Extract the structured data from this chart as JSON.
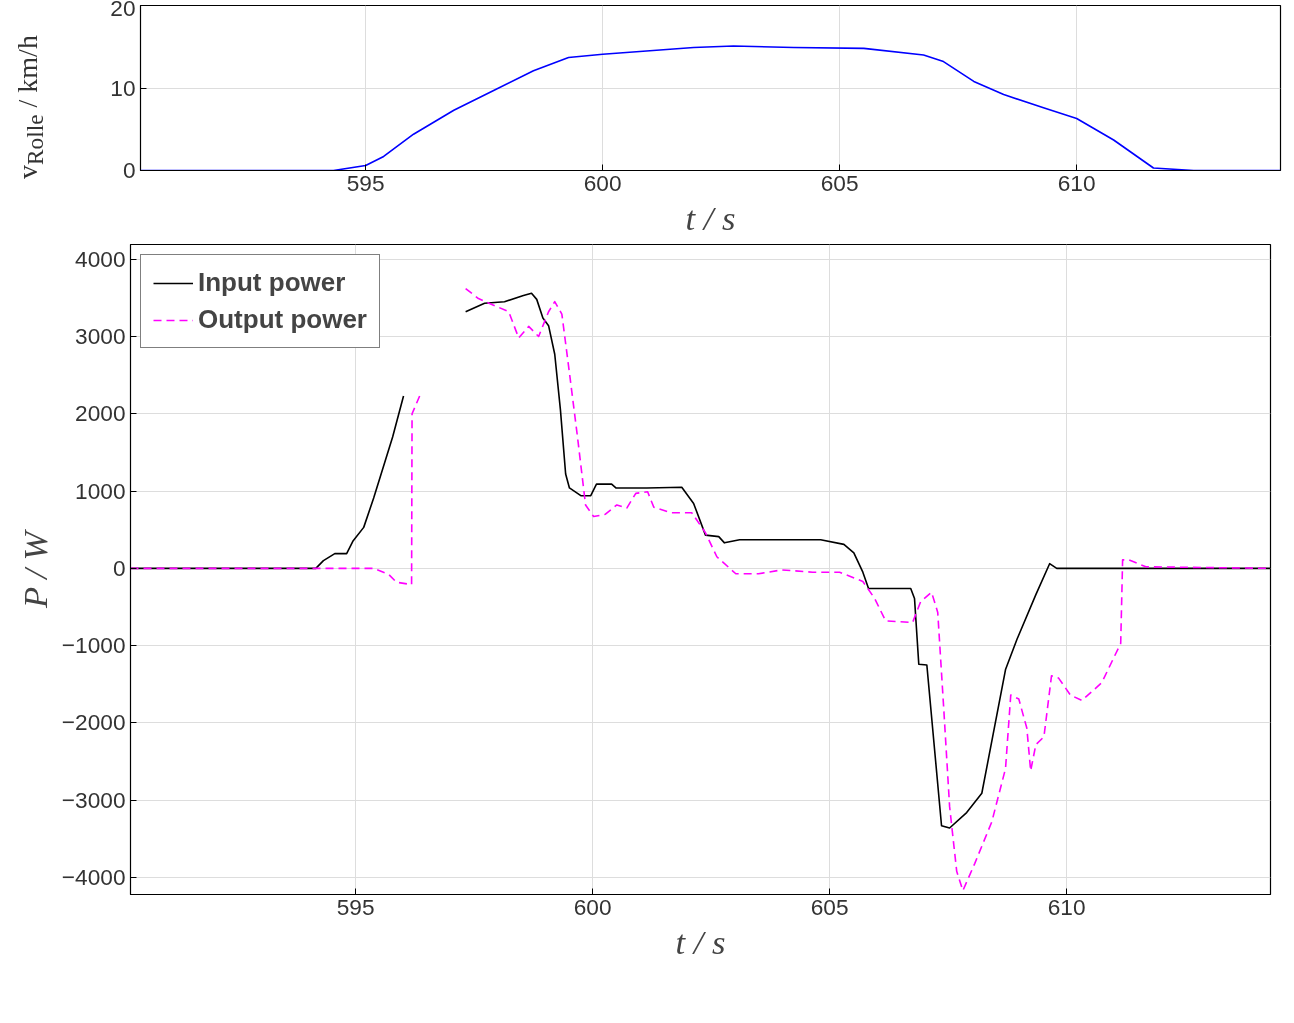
{
  "chart_data": [
    {
      "type": "line",
      "ylabel": "v$_{Rolle}$ / km/h",
      "xlabel": "t / s",
      "xlim": [
        590.25,
        614.3
      ],
      "ylim": [
        0,
        20
      ],
      "xticks": [
        595,
        600,
        605,
        610
      ],
      "yticks": [
        0,
        10,
        20
      ],
      "grid": true,
      "legend": false,
      "series": [
        {
          "color": "#0000ff",
          "line_style": "solid",
          "x": [
            590.25,
            594.32,
            595.0,
            595.38,
            596.01,
            596.86,
            597.7,
            598.54,
            599.28,
            600.0,
            601.92,
            602.76,
            604.03,
            605.51,
            606.77,
            607.19,
            607.83,
            608.46,
            609.3,
            610.0,
            610.78,
            611.62,
            612.47,
            614.3
          ],
          "values": [
            0,
            0,
            0.6,
            1.7,
            4.4,
            7.3,
            9.7,
            12.1,
            13.7,
            14.1,
            14.9,
            15.1,
            14.9,
            14.8,
            14.0,
            13.2,
            10.8,
            9.2,
            7.6,
            6.3,
            3.7,
            0.3,
            0,
            0
          ]
        }
      ]
    },
    {
      "type": "line",
      "ylabel": "P / W",
      "xlabel": "t / s",
      "xlim": [
        590.25,
        614.3
      ],
      "ylim": [
        -4220,
        4190
      ],
      "xticks": [
        595,
        600,
        605,
        610
      ],
      "yticks": [
        -4000,
        -3000,
        -2000,
        -1000,
        0,
        1000,
        2000,
        3000,
        4000
      ],
      "grid": true,
      "legend": "top left",
      "series": [
        {
          "name": "Input power",
          "color": "#000000",
          "line_style": "solid",
          "x": [
            590.25,
            594.16,
            594.32,
            594.56,
            594.81,
            594.94,
            595.17,
            595.38,
            595.78,
            596.01,
            596.6,
            597.32,
            597.72,
            598.14,
            598.54,
            598.71,
            598.82,
            598.95,
            599.07,
            599.2,
            599.32,
            599.43,
            599.51,
            599.75,
            599.96,
            600.08,
            600.4,
            600.49,
            601.14,
            601.88,
            602.13,
            602.38,
            602.66,
            602.78,
            603.1,
            603.5,
            604.81,
            605.3,
            605.51,
            605.7,
            605.82,
            606.71,
            606.79,
            606.88,
            607.05,
            607.36,
            607.53,
            607.89,
            608.21,
            608.71,
            608.95,
            609.35,
            609.64,
            609.79,
            614.3
          ],
          "values": [
            0,
            0,
            100,
            190,
            190,
            350,
            530,
            910,
            1700,
            2230,
            null,
            3320,
            3430,
            3450,
            3530,
            3560,
            3480,
            3240,
            3140,
            2770,
            2050,
            1220,
            1040,
            940,
            940,
            1090,
            1090,
            1040,
            1040,
            1050,
            840,
            430,
            410,
            330,
            370,
            370,
            370,
            310,
            200,
            -50,
            -260,
            -260,
            -390,
            -1240,
            -1250,
            -3330,
            -3360,
            -3160,
            -2910,
            -1310,
            -920,
            -340,
            60,
            0,
            0
          ]
        },
        {
          "name": "Output power",
          "color": "#ff00ff",
          "line_style": "dashed",
          "x": [
            590.25,
            595.38,
            595.7,
            595.86,
            596.18,
            596.19,
            596.35,
            596.8,
            597.32,
            597.59,
            598.23,
            598.44,
            598.65,
            598.86,
            599.07,
            599.2,
            599.35,
            599.51,
            599.68,
            599.85,
            600.02,
            600.27,
            600.51,
            600.72,
            600.91,
            601.16,
            601.29,
            601.65,
            602.09,
            602.38,
            602.62,
            603.02,
            603.5,
            603.99,
            604.64,
            605.21,
            605.7,
            605.95,
            606.18,
            606.75,
            606.92,
            607.15,
            607.28,
            607.41,
            607.53,
            607.68,
            607.81,
            608.06,
            608.42,
            608.71,
            608.82,
            608.99,
            609.16,
            609.24,
            609.35,
            609.52,
            609.68,
            609.83,
            610.08,
            610.32,
            610.74,
            611.14,
            611.18,
            611.31,
            611.67,
            614.3
          ],
          "values": [
            0,
            0,
            -80,
            -180,
            -210,
            2000,
            2230,
            null,
            3620,
            3490,
            3320,
            2980,
            3130,
            3000,
            3320,
            3450,
            3290,
            2530,
            1700,
            820,
            670,
            700,
            820,
            780,
            970,
            990,
            790,
            720,
            720,
            460,
            150,
            -70,
            -70,
            -20,
            -50,
            -50,
            -170,
            -390,
            -680,
            -700,
            -430,
            -310,
            -570,
            -1850,
            -3080,
            -3920,
            -4170,
            -3820,
            -3280,
            -2590,
            -1640,
            -1690,
            -2070,
            -2620,
            -2280,
            -2180,
            -1390,
            -1420,
            -1640,
            -1710,
            -1480,
            -970,
            110,
            110,
            20,
            0
          ]
        }
      ]
    }
  ]
}
